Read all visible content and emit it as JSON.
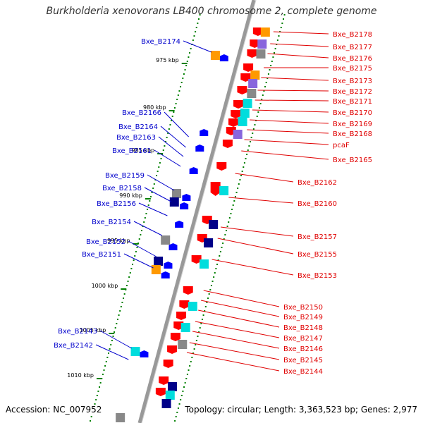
{
  "title": "Burkholderia xenovorans LB400 chromosome 2, complete genome",
  "footer": {
    "accession": "Accession: NC_007952",
    "summary": "Topology: circular; Length: 3,363,523 bp; Genes: 2,977"
  },
  "colors": {
    "forward_label": "#e00000",
    "reverse_label": "#0000cc",
    "forward_gene": "#ff0000",
    "reverse_gene": "#0000ff",
    "backbone": "#999999",
    "gc_dots": "#008000",
    "cog_colors": [
      "#ff9900",
      "#888888",
      "#00dddd",
      "#000088",
      "#8866dd"
    ]
  },
  "ticks": [
    {
      "label": "975 kbp"
    },
    {
      "label": "980 kbp"
    },
    {
      "label": "985 kbp"
    },
    {
      "label": "990 kbp"
    },
    {
      "label": "995 kbp"
    },
    {
      "label": "1000 kbp"
    },
    {
      "label": "1005 kbp"
    },
    {
      "label": "1010 kbp"
    }
  ],
  "forward_genes": [
    {
      "name": "Bxe_B2178"
    },
    {
      "name": "Bxe_B2177"
    },
    {
      "name": "Bxe_B2176"
    },
    {
      "name": "Bxe_B2175"
    },
    {
      "name": "Bxe_B2173"
    },
    {
      "name": "Bxe_B2172"
    },
    {
      "name": "Bxe_B2171"
    },
    {
      "name": "Bxe_B2170"
    },
    {
      "name": "Bxe_B2169"
    },
    {
      "name": "Bxe_B2168"
    },
    {
      "name": "pcaF"
    },
    {
      "name": "Bxe_B2165"
    },
    {
      "name": "Bxe_B2162"
    },
    {
      "name": "Bxe_B2160"
    },
    {
      "name": "Bxe_B2157"
    },
    {
      "name": "Bxe_B2155"
    },
    {
      "name": "Bxe_B2153"
    },
    {
      "name": "Bxe_B2150"
    },
    {
      "name": "Bxe_B2149"
    },
    {
      "name": "Bxe_B2148"
    },
    {
      "name": "Bxe_B2147"
    },
    {
      "name": "Bxe_B2146"
    },
    {
      "name": "Bxe_B2145"
    },
    {
      "name": "Bxe_B2144"
    }
  ],
  "reverse_genes": [
    {
      "name": "Bxe_B2174"
    },
    {
      "name": "Bxe_B2166"
    },
    {
      "name": "Bxe_B2164"
    },
    {
      "name": "Bxe_B2163"
    },
    {
      "name": "Bxe_B2161"
    },
    {
      "name": "Bxe_B2159"
    },
    {
      "name": "Bxe_B2158"
    },
    {
      "name": "Bxe_B2156"
    },
    {
      "name": "Bxe_B2154"
    },
    {
      "name": "Bxe_B2152"
    },
    {
      "name": "Bxe_B2151"
    },
    {
      "name": "Bxe_B2143"
    },
    {
      "name": "Bxe_B2142"
    }
  ]
}
